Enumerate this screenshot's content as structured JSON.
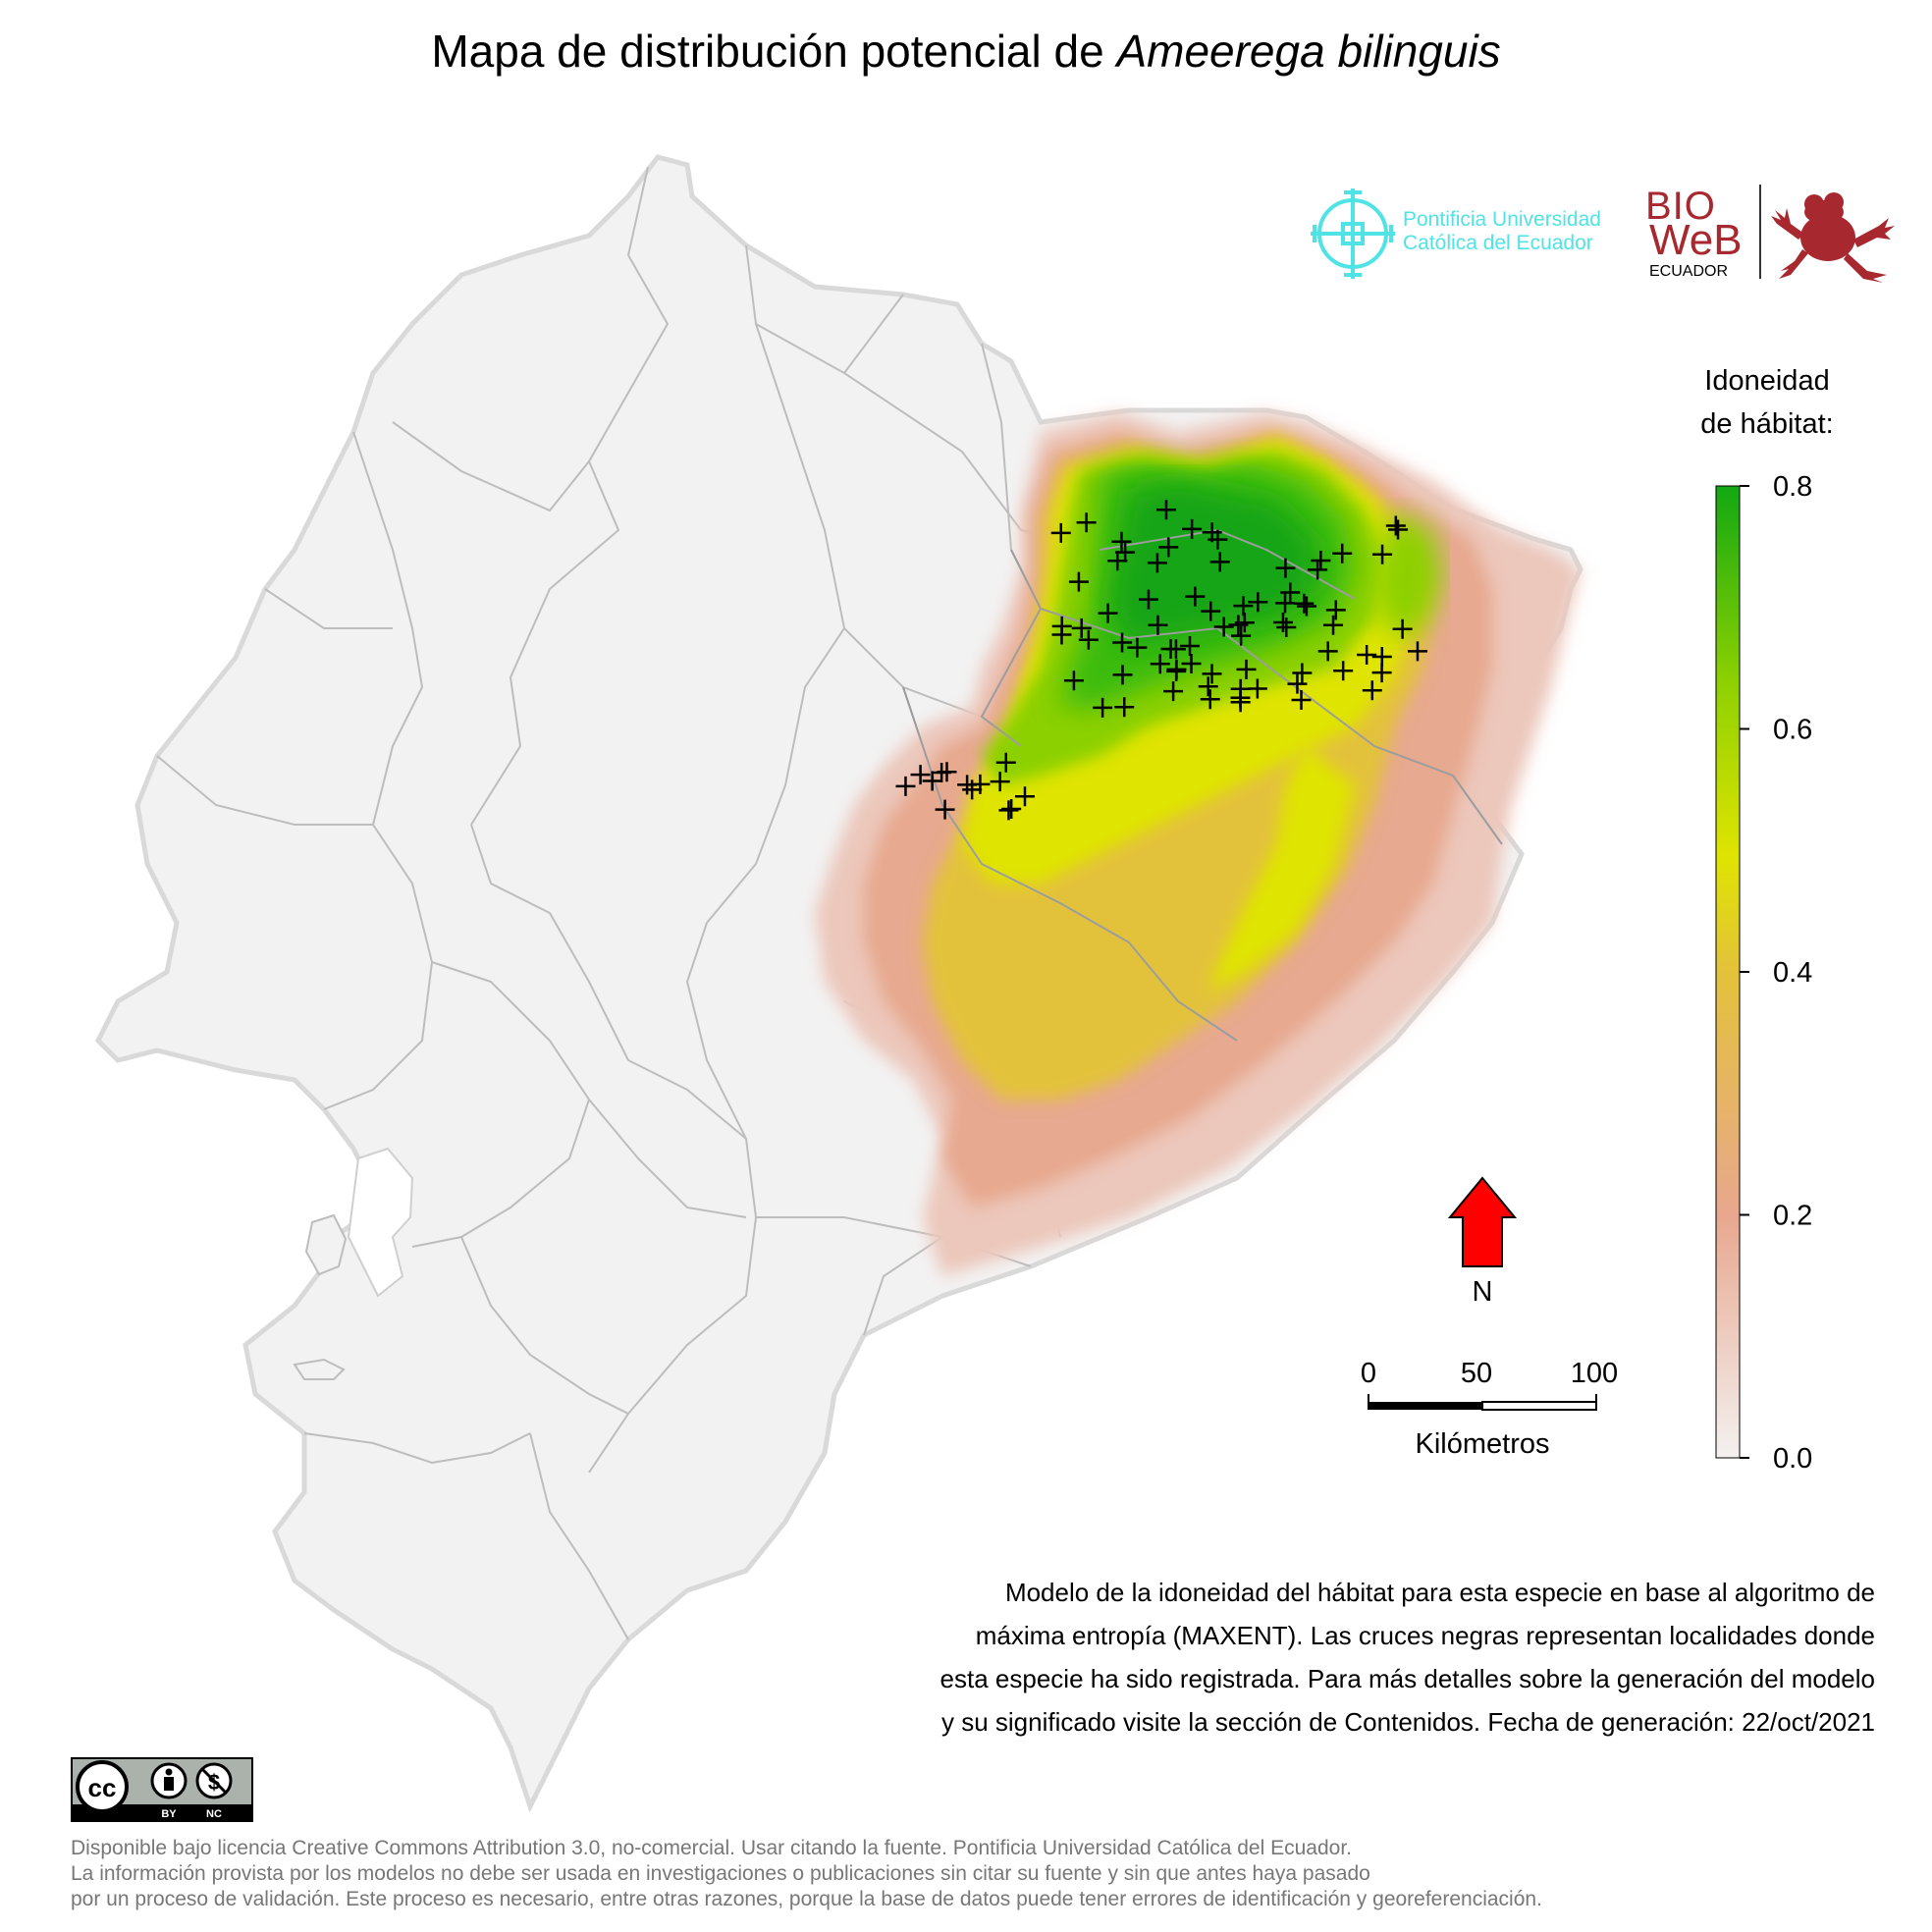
{
  "title": {
    "prefix": "Mapa de distribución potencial de ",
    "species": "Ameerega bilinguis"
  },
  "logos": {
    "puce_line1": "Pontificia Universidad",
    "puce_line2": "Católica del Ecuador",
    "bioweb_line1": "BIO",
    "bioweb_line2": "WeB",
    "bioweb_line3": "ECUADOR",
    "puce_color": "#4fe3e5",
    "bioweb_color": "#a8282f"
  },
  "legend": {
    "title_line1": "Idoneidad",
    "title_line2": "de hábitat:",
    "ticks": [
      {
        "value": 0.8,
        "label": "0.8"
      },
      {
        "value": 0.6,
        "label": "0.6"
      },
      {
        "value": 0.4,
        "label": "0.4"
      },
      {
        "value": 0.2,
        "label": "0.2"
      },
      {
        "value": 0.0,
        "label": "0.0"
      }
    ],
    "range": [
      0,
      0.8
    ],
    "colors": [
      "#f3f1f0",
      "#e8a78e",
      "#e3c23a",
      "#dfe400",
      "#8cd000",
      "#12a812"
    ]
  },
  "north_arrow": {
    "label": "N",
    "color": "#ff0000"
  },
  "scale_bar": {
    "labels": [
      "0",
      "50",
      "100"
    ],
    "unit": "Kilómetros"
  },
  "caption": [
    "Modelo de la idoneidad del hábitat para esta especie en base al algoritmo de",
    "máxima entropía (MAXENT). Las cruces negras representan localidades donde",
    "esta especie ha sido registrada. Para más detalles sobre la generación del modelo",
    "y su significado visite la sección de Contenidos. Fecha de generación: 22/oct/2021"
  ],
  "cc_badge": {
    "by": "BY",
    "nc": "NC",
    "cc": "cc"
  },
  "license": [
    "Disponible bajo licencia Creative Commons Attribution 3.0, no-comercial. Usar citando la fuente. Pontificia Universidad Católica del Ecuador.",
    "La información provista por los modelos no debe ser usada en investigaciones o publicaciones sin citar su fuente y sin que antes haya pasado",
    "por un proceso de validación. Este proceso es necesario, entre otras razones, porque la base de datos puede tener errores de identificación y georeferenciación."
  ],
  "map": {
    "land_color": "#f2f2f2",
    "border_color": "#bdbdbd",
    "record_count": 90
  }
}
